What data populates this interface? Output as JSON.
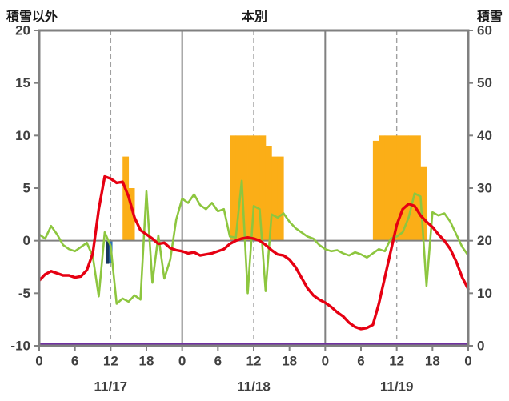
{
  "header": {
    "left_label": "積雪以外",
    "title": "本別",
    "right_label": "積雪"
  },
  "colors": {
    "temperature": "#e60012",
    "wind": "#8dc63f",
    "sunshine": "#fbae17",
    "precip_dark": "#17375e",
    "precip_light": "#2e75b6",
    "snow": "#7030a0",
    "grid_solid": "#808080",
    "grid_dashed": "#a0a0a0",
    "text": "#3f3f3f",
    "background": "#ffffff"
  },
  "chart_data": {
    "type": "line",
    "title": "本別",
    "left_axis": {
      "label": "積雪以外",
      "min": -10,
      "max": 20,
      "ticks": [
        20,
        15,
        10,
        5,
        0,
        -5,
        -10
      ]
    },
    "right_axis": {
      "label": "積雪",
      "min": 0,
      "max": 60,
      "ticks": [
        60,
        50,
        40,
        30,
        20,
        10,
        0
      ]
    },
    "x_axis": {
      "min": 0,
      "max": 72,
      "tick_hours": [
        0,
        6,
        12,
        18,
        24,
        30,
        36,
        42,
        48,
        54,
        60,
        66,
        72
      ],
      "tick_labels": [
        "0",
        "6",
        "12",
        "18",
        "0",
        "6",
        "12",
        "18",
        "0",
        "6",
        "12",
        "18",
        "0"
      ],
      "day_labels": [
        {
          "text": "11/17",
          "hour": 12
        },
        {
          "text": "11/18",
          "hour": 36
        },
        {
          "text": "11/19",
          "hour": 60
        }
      ],
      "solid_grid_hours": [
        24,
        48
      ],
      "dashed_grid_hours": [
        12,
        36,
        60
      ]
    },
    "grid": "vertical lines at noon (dashed) and midnight (solid); horizontal line at 0 only",
    "legend_position": "none",
    "series": {
      "temperature": {
        "name": "temperature-line-red",
        "axis": "left",
        "x_step_hours": 1,
        "values": [
          -3.8,
          -3.2,
          -2.9,
          -3.1,
          -3.3,
          -3.3,
          -3.5,
          -3.4,
          -2.8,
          -1.2,
          3.0,
          6.1,
          5.9,
          5.5,
          5.6,
          4.2,
          2.2,
          1.0,
          0.6,
          0.2,
          -0.3,
          -0.2,
          -0.7,
          -0.9,
          -1.0,
          -1.2,
          -1.1,
          -1.4,
          -1.3,
          -1.2,
          -1.0,
          -0.8,
          -0.3,
          0.0,
          0.2,
          0.3,
          0.2,
          0.0,
          -0.4,
          -0.9,
          -1.3,
          -1.4,
          -1.8,
          -2.5,
          -3.5,
          -4.5,
          -5.2,
          -5.6,
          -5.9,
          -6.3,
          -6.8,
          -7.2,
          -7.8,
          -8.2,
          -8.4,
          -8.3,
          -8.0,
          -6.0,
          -3.5,
          -1.0,
          1.5,
          3.0,
          3.5,
          3.3,
          2.4,
          1.8,
          1.3,
          0.6,
          0.0,
          -0.8,
          -2.0,
          -3.5,
          -4.6
        ]
      },
      "wind": {
        "name": "wind-line-green",
        "axis": "left",
        "x_step_hours": 1,
        "values": [
          0.6,
          0.2,
          1.4,
          0.6,
          -0.4,
          -0.8,
          -1.0,
          -0.6,
          -0.2,
          -1.5,
          -5.3,
          0.8,
          -0.5,
          -6.0,
          -5.5,
          -5.8,
          -5.2,
          -5.6,
          4.7,
          -4.0,
          0.5,
          -3.6,
          -1.8,
          2.0,
          4.0,
          3.6,
          4.4,
          3.4,
          3.0,
          3.6,
          2.8,
          3.0,
          0.4,
          0.3,
          5.7,
          -5.0,
          3.3,
          3.0,
          -4.8,
          2.5,
          2.2,
          2.6,
          1.8,
          1.2,
          0.8,
          0.4,
          0.2,
          -0.4,
          -0.8,
          -1.0,
          -0.9,
          -1.2,
          -1.4,
          -1.1,
          -1.3,
          -1.6,
          -1.2,
          -0.8,
          -1.0,
          0.2,
          0.4,
          0.8,
          2.2,
          4.5,
          4.2,
          -4.3,
          2.7,
          2.4,
          2.6,
          1.8,
          0.6,
          -0.6,
          -1.4
        ]
      },
      "sunshine": {
        "name": "sunshine-bars-orange",
        "axis": "left",
        "bar_width_hours": 1,
        "bars": [
          {
            "x": 14,
            "v": 8
          },
          {
            "x": 15,
            "v": 5
          },
          {
            "x": 32,
            "v": 10
          },
          {
            "x": 33,
            "v": 10
          },
          {
            "x": 34,
            "v": 10
          },
          {
            "x": 35,
            "v": 10
          },
          {
            "x": 36,
            "v": 10
          },
          {
            "x": 37,
            "v": 10
          },
          {
            "x": 38,
            "v": 9
          },
          {
            "x": 39,
            "v": 8
          },
          {
            "x": 40,
            "v": 8
          },
          {
            "x": 56,
            "v": 9.5
          },
          {
            "x": 57,
            "v": 10
          },
          {
            "x": 58,
            "v": 10
          },
          {
            "x": 59,
            "v": 10
          },
          {
            "x": 60,
            "v": 10
          },
          {
            "x": 61,
            "v": 10
          },
          {
            "x": 62,
            "v": 10
          },
          {
            "x": 63,
            "v": 10
          },
          {
            "x": 64,
            "v": 7
          }
        ]
      },
      "precipitation": {
        "name": "precipitation-bars-blue",
        "axis": "left",
        "bars": [
          {
            "x": 11.2,
            "v": -2.2,
            "w": 0.55,
            "color": "#17375e"
          },
          {
            "x": 11.75,
            "v": -2.1,
            "w": 0.55,
            "color": "#2e75b6"
          }
        ]
      },
      "snow_depth": {
        "name": "snow-depth-line-purple",
        "axis": "right",
        "constant_value_cm": 0
      }
    }
  }
}
